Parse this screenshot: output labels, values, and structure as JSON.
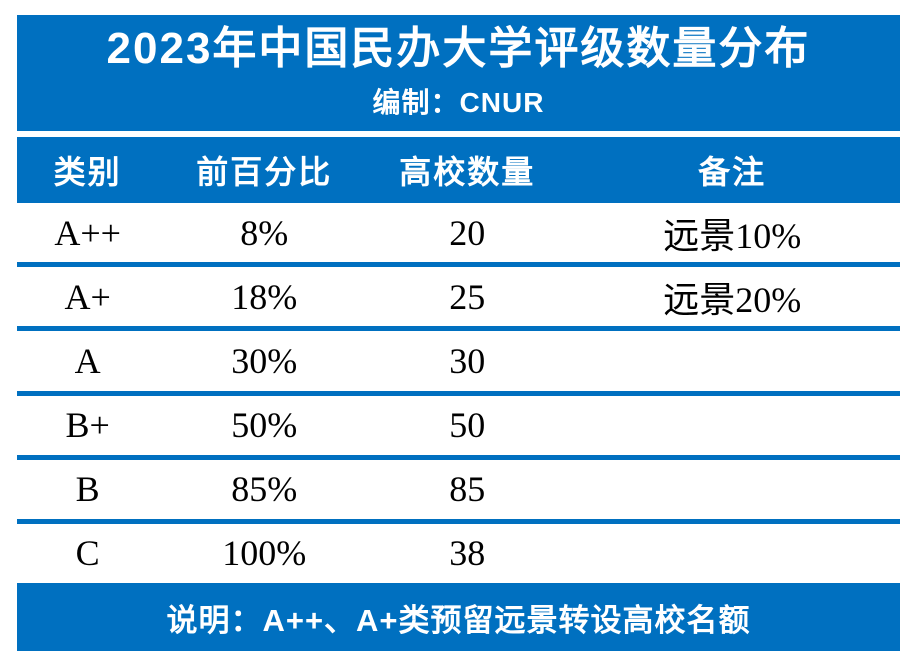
{
  "colors": {
    "accent_blue": "#0070C0",
    "band_text": "#ffffff",
    "row_text": "#000000"
  },
  "header": {
    "title": "2023年中国民办大学评级数量分布",
    "subtitle": "编制：CNUR"
  },
  "chart_data": {
    "type": "table",
    "title": "2023年中国民办大学评级数量分布",
    "subtitle": "编制：CNUR",
    "columns": [
      "类别",
      "前百分比",
      "高校数量",
      "备注"
    ],
    "rows": [
      [
        "A++",
        "8%",
        "20",
        "远景10%"
      ],
      [
        "A+",
        "18%",
        "25",
        "远景20%"
      ],
      [
        "A",
        "30%",
        "30",
        ""
      ],
      [
        "B+",
        "50%",
        "50",
        ""
      ],
      [
        "B",
        "85%",
        "85",
        ""
      ],
      [
        "C",
        "100%",
        "38",
        ""
      ]
    ],
    "footnote": "说明：A++、A+类预留远景转设高校名额"
  },
  "footer": {
    "note": "说明：A++、A+类预留远景转设高校名额"
  }
}
